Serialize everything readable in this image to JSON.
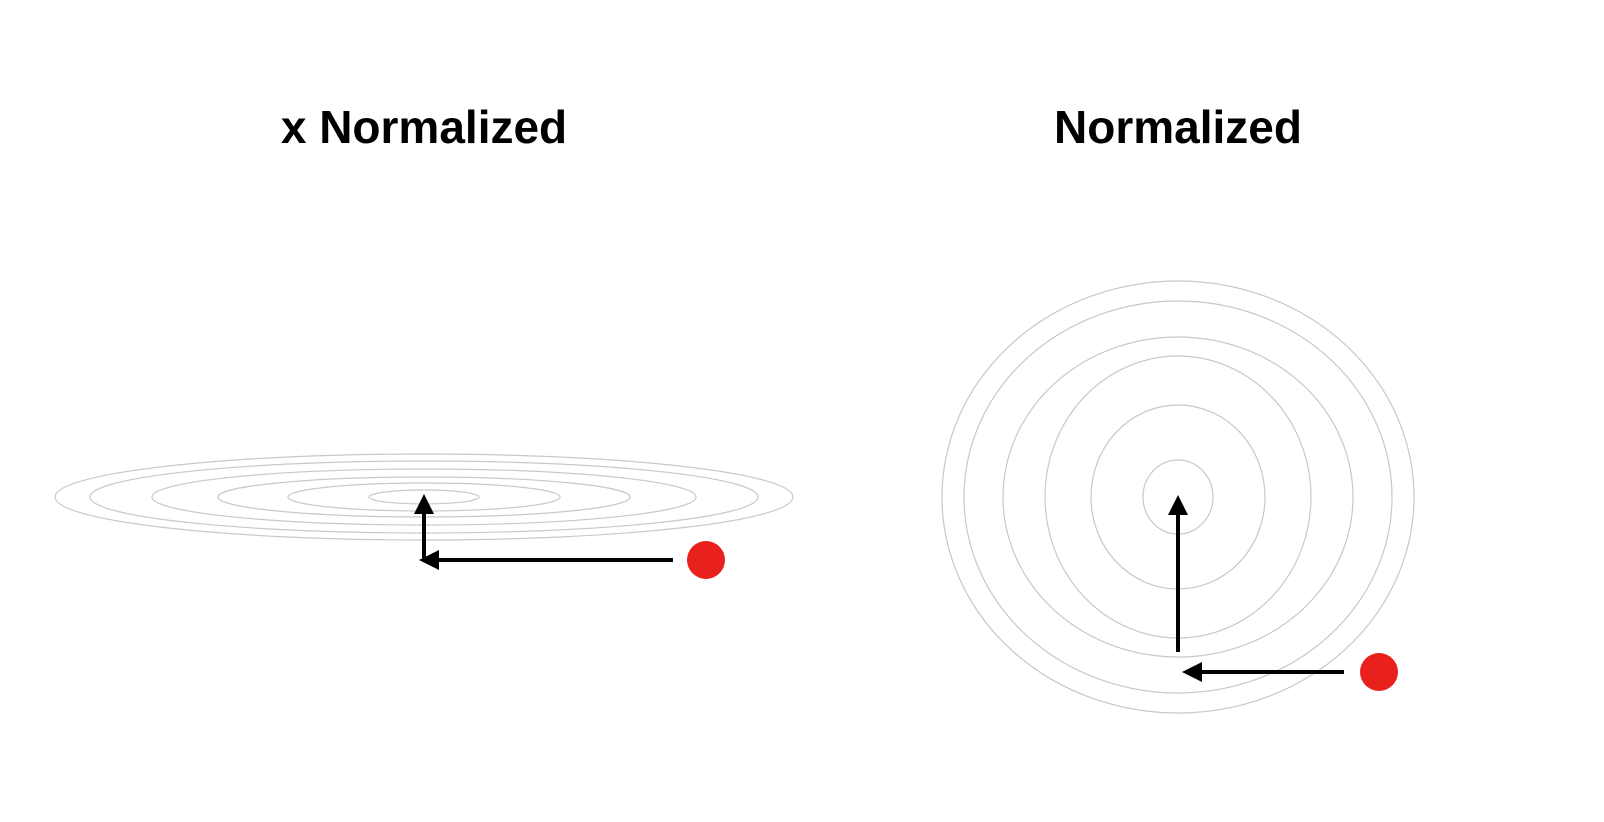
{
  "panels": [
    {
      "title": "x Normalized",
      "contours": 6,
      "point_color": "#e8211d",
      "arrows": [
        "left",
        "up"
      ]
    },
    {
      "title": "Normalized",
      "contours": 6,
      "point_color": "#e8211d",
      "arrows": [
        "left",
        "up"
      ]
    }
  ],
  "colors": {
    "contour": "#c8c8c8",
    "arrow": "#000000",
    "point": "#e8211d",
    "title": "#000000"
  }
}
